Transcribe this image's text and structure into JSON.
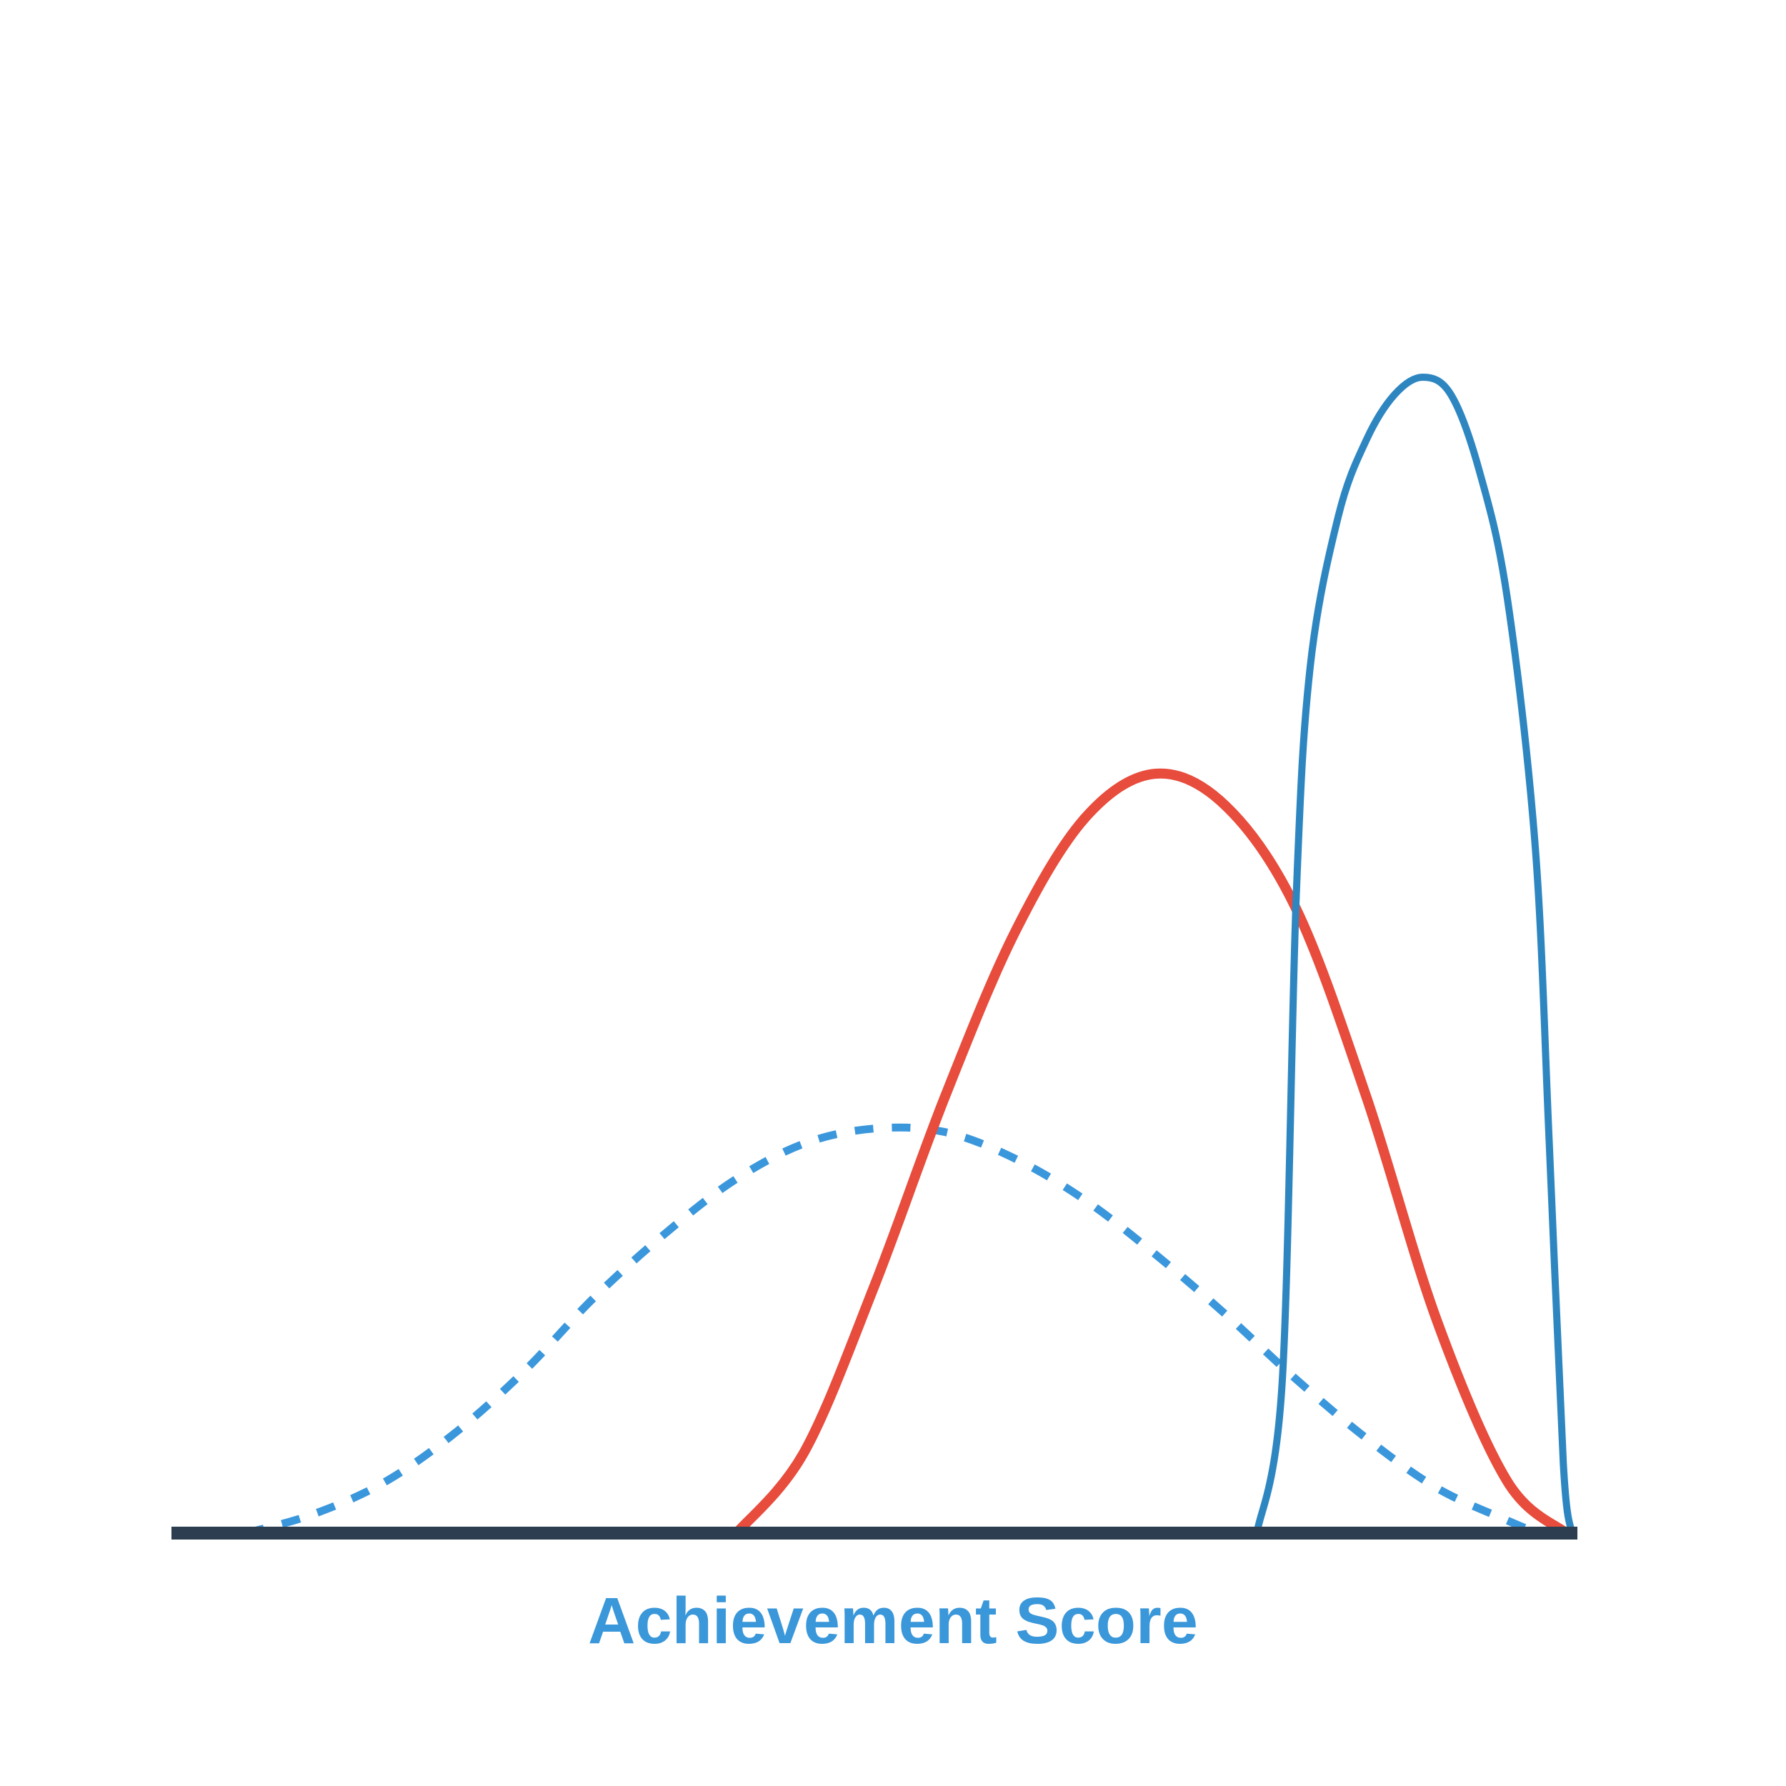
{
  "chart_data": {
    "type": "line",
    "x_label": "Achievement Score",
    "xlim": [
      0,
      100
    ],
    "ylim": [
      0,
      100
    ],
    "series": [
      {
        "color": "#3b97dc",
        "dashed": true,
        "x": [
          5.3,
          10,
          15,
          20,
          25,
          30,
          35,
          40,
          45,
          50,
          55,
          60,
          65,
          70,
          75,
          80,
          85,
          90,
          95,
          97.2
        ],
        "values": [
          0,
          1.6,
          4.3,
          8.5,
          13.9,
          20.3,
          25.8,
          30.5,
          33.7,
          35.0,
          34.7,
          32.4,
          28.8,
          24.1,
          18.9,
          13.3,
          8.2,
          3.9,
          1.1,
          0
        ]
      },
      {
        "color": "#e74c3c",
        "dashed": false,
        "x": [
          40.2,
          45,
          50,
          55,
          60,
          65,
          70,
          75,
          80,
          85,
          90,
          95,
          99.2
        ],
        "values": [
          0,
          7.0,
          21.4,
          37.7,
          52.0,
          61.9,
          65.7,
          62.9,
          54.0,
          37.7,
          18.4,
          4.5,
          0
        ]
      },
      {
        "color": "#2e86c1",
        "dashed": false,
        "x": [
          77.2,
          79,
          80,
          81,
          83,
          85,
          87,
          89,
          91,
          93,
          95,
          97,
          98,
          99,
          99.6
        ],
        "values": [
          0,
          13,
          55,
          75,
          88,
          94.6,
          98.5,
          100,
          98.5,
          92,
          81,
          59.4,
          33.7,
          6,
          0
        ]
      }
    ]
  }
}
